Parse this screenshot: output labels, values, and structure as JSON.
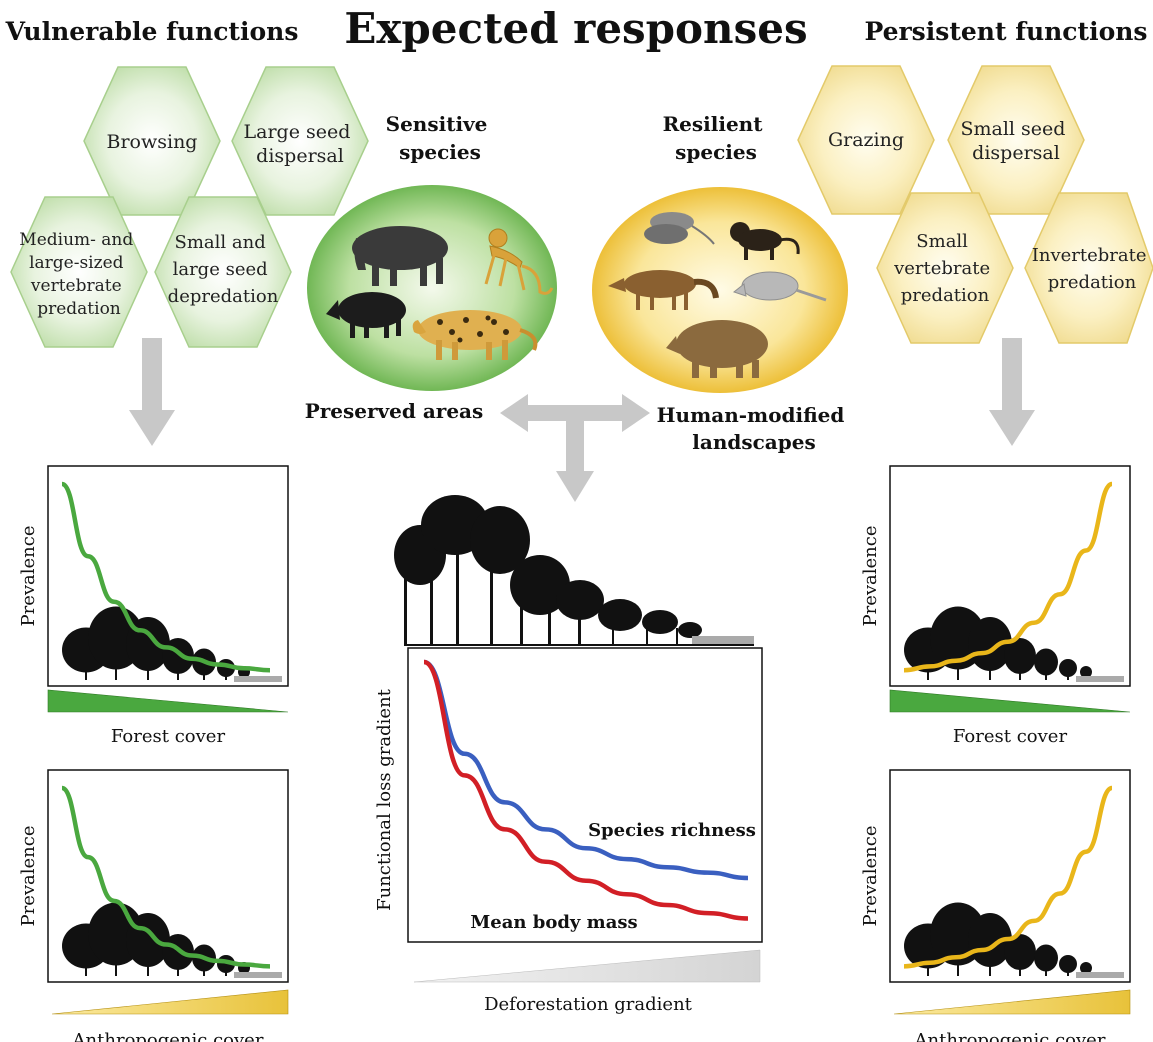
{
  "header": {
    "title": "Expected responses",
    "vulnerable_title": "Vulnerable functions",
    "persistent_title": "Persistent functions"
  },
  "vulnerable_functions": [
    {
      "label": "Browsing"
    },
    {
      "label": "Large seed dispersal"
    },
    {
      "label": "Medium- and large-sized vertebrate predation"
    },
    {
      "label": "Small and large seed depredation"
    }
  ],
  "persistent_functions": [
    {
      "label": "Grazing"
    },
    {
      "label": "Small seed dispersal"
    },
    {
      "label": "Small vertebrate predation"
    },
    {
      "label": "Invertebrate predation"
    }
  ],
  "species": {
    "sensitive": "Sensitive species",
    "resilient": "Resilient species",
    "sensitive_icons": [
      "tapir-icon",
      "monkey-icon",
      "peccary-icon",
      "jaguar-icon"
    ],
    "resilient_icons": [
      "opossum-icon",
      "capuchin-icon",
      "fox-icon",
      "armadillo-icon",
      "capybara-icon"
    ]
  },
  "gradient": {
    "left": "Preserved areas",
    "right": "Human-modified landscapes"
  },
  "colors": {
    "vulnerable": "#4aa83f",
    "persistent": "#e9b61a",
    "species_richness": "#3a5fc0",
    "body_mass": "#d21f26",
    "arrow": "#c8c8c8",
    "green_hex": "#c8e3b6",
    "yellow_hex": "#f4e6a0"
  },
  "chart_data": [
    {
      "type": "line",
      "panel": "vulnerable-forest",
      "ylabel": "Prevalence",
      "xlabel": "Forest cover",
      "series": [
        {
          "values": [
            1.0,
            0.62,
            0.38,
            0.23,
            0.14,
            0.08,
            0.05,
            0.03,
            0.02
          ]
        }
      ]
    },
    {
      "type": "line",
      "panel": "vulnerable-anthropogenic",
      "ylabel": "Prevalence",
      "xlabel": "Anthropogenic cover",
      "series": [
        {
          "values": [
            1.0,
            0.62,
            0.38,
            0.23,
            0.14,
            0.08,
            0.05,
            0.03,
            0.02
          ]
        }
      ]
    },
    {
      "type": "line",
      "panel": "persistent-forest",
      "ylabel": "Prevalence",
      "xlabel": "Forest cover",
      "series": [
        {
          "values": [
            0.02,
            0.04,
            0.07,
            0.11,
            0.17,
            0.27,
            0.42,
            0.65,
            1.0
          ]
        }
      ]
    },
    {
      "type": "line",
      "panel": "persistent-anthropogenic",
      "ylabel": "Prevalence",
      "xlabel": "Anthropogenic cover",
      "series": [
        {
          "values": [
            0.02,
            0.04,
            0.07,
            0.11,
            0.17,
            0.27,
            0.42,
            0.65,
            1.0
          ]
        }
      ]
    },
    {
      "type": "line",
      "panel": "functional-loss",
      "ylabel": "Functional loss gradient",
      "xlabel": "Deforestation gradient",
      "series": [
        {
          "name": "Species richness",
          "values": [
            1.0,
            0.66,
            0.48,
            0.38,
            0.31,
            0.27,
            0.24,
            0.22,
            0.2
          ]
        },
        {
          "name": "Mean body mass",
          "values": [
            1.0,
            0.58,
            0.38,
            0.26,
            0.19,
            0.14,
            0.1,
            0.07,
            0.05
          ]
        }
      ]
    }
  ]
}
